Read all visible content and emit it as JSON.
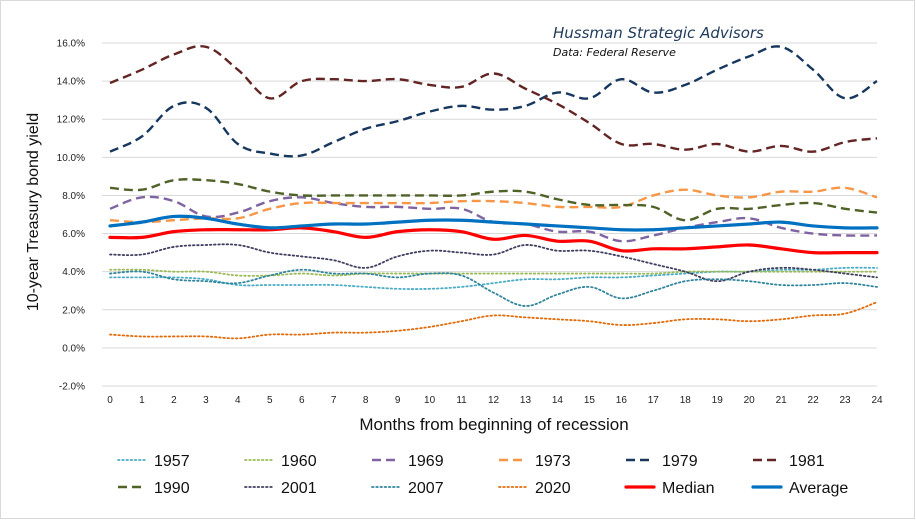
{
  "source": {
    "title": "Hussman Strategic Advisors",
    "subtitle": "Data: Federal Reserve"
  },
  "chart_data": {
    "type": "line",
    "xlabel": "Months from beginning of recession",
    "ylabel": "10-year Treasury bond yield",
    "x": [
      0,
      1,
      2,
      3,
      4,
      5,
      6,
      7,
      8,
      9,
      10,
      11,
      12,
      13,
      14,
      15,
      16,
      17,
      18,
      19,
      20,
      21,
      22,
      23,
      24
    ],
    "xlim": [
      0,
      24
    ],
    "ylim": [
      -2.0,
      16.0
    ],
    "yticks": [
      -2.0,
      0.0,
      2.0,
      4.0,
      6.0,
      8.0,
      10.0,
      12.0,
      14.0,
      16.0
    ],
    "ytick_labels": [
      "-2.0%",
      "0.0%",
      "2.0%",
      "4.0%",
      "6.0%",
      "8.0%",
      "10.0%",
      "12.0%",
      "14.0%",
      "16.0%"
    ],
    "grid": "horizontal",
    "legend_position": "bottom",
    "series": [
      {
        "name": "1957",
        "color": "#4bacc6",
        "style": "dotted",
        "values": [
          3.7,
          3.7,
          3.7,
          3.6,
          3.3,
          3.3,
          3.3,
          3.3,
          3.2,
          3.1,
          3.1,
          3.2,
          3.4,
          3.6,
          3.6,
          3.7,
          3.7,
          3.8,
          3.9,
          4.0,
          4.0,
          4.1,
          4.1,
          4.2,
          4.2
        ]
      },
      {
        "name": "1960",
        "color": "#9bbb59",
        "style": "dotted",
        "values": [
          4.1,
          4.1,
          4.0,
          4.0,
          3.8,
          3.8,
          3.9,
          3.8,
          3.9,
          3.9,
          3.9,
          3.9,
          3.9,
          3.9,
          3.9,
          3.9,
          3.9,
          3.9,
          4.0,
          4.0,
          4.0,
          4.0,
          4.0,
          4.0,
          4.0
        ]
      },
      {
        "name": "1969",
        "color": "#8064a2",
        "style": "dashed",
        "values": [
          7.3,
          7.9,
          7.7,
          6.9,
          7.1,
          7.7,
          7.9,
          7.6,
          7.4,
          7.4,
          7.3,
          7.3,
          6.6,
          6.5,
          6.1,
          6.1,
          5.6,
          5.9,
          6.3,
          6.6,
          6.8,
          6.3,
          6.0,
          5.9,
          5.9
        ]
      },
      {
        "name": "1973",
        "color": "#f79646",
        "style": "dashed",
        "values": [
          6.7,
          6.6,
          6.7,
          6.8,
          6.8,
          7.3,
          7.6,
          7.6,
          7.6,
          7.6,
          7.6,
          7.7,
          7.7,
          7.6,
          7.4,
          7.4,
          7.4,
          8.0,
          8.3,
          8.0,
          7.9,
          8.2,
          8.2,
          8.4,
          7.9
        ]
      },
      {
        "name": "1979",
        "color": "#17375e",
        "style": "dashed",
        "values": [
          10.3,
          11.1,
          12.7,
          12.6,
          10.7,
          10.2,
          10.1,
          10.8,
          11.5,
          11.9,
          12.4,
          12.7,
          12.5,
          12.7,
          13.4,
          13.1,
          14.1,
          13.4,
          13.8,
          14.6,
          15.3,
          15.8,
          14.6,
          13.1,
          14.0
        ]
      },
      {
        "name": "1981",
        "color": "#632523",
        "style": "dashed",
        "values": [
          13.9,
          14.6,
          15.4,
          15.8,
          14.6,
          13.1,
          14.0,
          14.1,
          14.0,
          14.1,
          13.8,
          13.7,
          14.4,
          13.6,
          12.8,
          11.8,
          10.7,
          10.7,
          10.4,
          10.7,
          10.3,
          10.6,
          10.3,
          10.8,
          11.0
        ]
      },
      {
        "name": "1990",
        "color": "#4f6228",
        "style": "dashed",
        "values": [
          8.4,
          8.3,
          8.8,
          8.8,
          8.6,
          8.2,
          8.0,
          8.0,
          8.0,
          8.0,
          8.0,
          8.0,
          8.2,
          8.2,
          7.8,
          7.5,
          7.5,
          7.4,
          6.7,
          7.3,
          7.3,
          7.5,
          7.6,
          7.3,
          7.1
        ]
      },
      {
        "name": "2001",
        "color": "#3f3f5f",
        "style": "dotted",
        "values": [
          4.9,
          4.9,
          5.3,
          5.4,
          5.4,
          5.0,
          4.8,
          4.6,
          4.2,
          4.8,
          5.1,
          5.0,
          4.9,
          5.4,
          5.1,
          5.1,
          4.8,
          4.4,
          4.0,
          3.5,
          4.0,
          4.2,
          4.1,
          3.9,
          3.7
        ]
      },
      {
        "name": "2007",
        "color": "#31859c",
        "style": "dotted",
        "values": [
          3.9,
          4.0,
          3.6,
          3.5,
          3.4,
          3.8,
          4.1,
          3.9,
          3.9,
          3.7,
          3.9,
          3.8,
          2.9,
          2.2,
          2.8,
          3.2,
          2.6,
          3.0,
          3.5,
          3.6,
          3.5,
          3.3,
          3.3,
          3.4,
          3.2
        ]
      },
      {
        "name": "2020",
        "color": "#e26b0a",
        "style": "dotted",
        "values": [
          0.7,
          0.6,
          0.6,
          0.6,
          0.5,
          0.7,
          0.7,
          0.8,
          0.8,
          0.9,
          1.1,
          1.4,
          1.7,
          1.6,
          1.5,
          1.4,
          1.2,
          1.3,
          1.5,
          1.5,
          1.4,
          1.5,
          1.7,
          1.8,
          2.4
        ]
      },
      {
        "name": "Median",
        "color": "#ff0000",
        "style": "solid-thick",
        "values": [
          5.8,
          5.8,
          6.1,
          6.2,
          6.2,
          6.2,
          6.3,
          6.1,
          5.8,
          6.1,
          6.2,
          6.1,
          5.7,
          5.9,
          5.6,
          5.6,
          5.1,
          5.2,
          5.2,
          5.3,
          5.4,
          5.2,
          5.0,
          5.0,
          5.0
        ]
      },
      {
        "name": "Average",
        "color": "#0070c0",
        "style": "solid-thick",
        "values": [
          6.4,
          6.6,
          6.9,
          6.8,
          6.5,
          6.3,
          6.4,
          6.5,
          6.5,
          6.6,
          6.7,
          6.7,
          6.6,
          6.5,
          6.4,
          6.3,
          6.2,
          6.2,
          6.3,
          6.4,
          6.5,
          6.6,
          6.4,
          6.3,
          6.3
        ]
      }
    ]
  }
}
